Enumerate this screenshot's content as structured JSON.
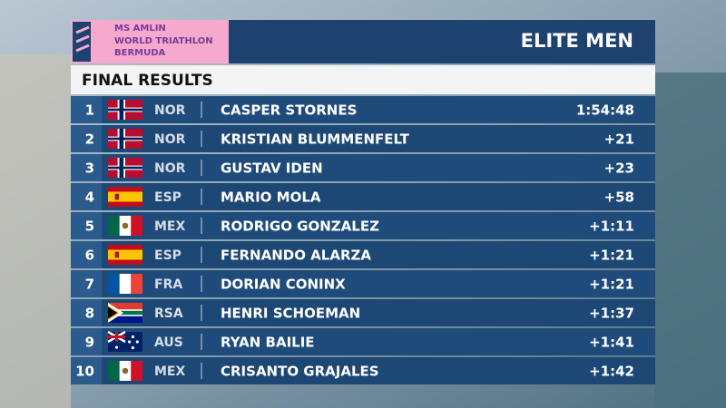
{
  "logo": {
    "line1": "MS AMLIN",
    "line2": "WORLD TRIATHLON",
    "line3": "BERMUDA"
  },
  "title": "ELITE MEN",
  "subtitle": "FINAL RESULTS",
  "results": [
    {
      "rank": 1,
      "country": "NOR",
      "name": "CASPER STORNES",
      "time": "1:54:48"
    },
    {
      "rank": 2,
      "country": "NOR",
      "name": "KRISTIAN BLUMMENFELT",
      "time": "+21"
    },
    {
      "rank": 3,
      "country": "NOR",
      "name": "GUSTAV IDEN",
      "time": "+23"
    },
    {
      "rank": 4,
      "country": "ESP",
      "name": "MARIO MOLA",
      "time": "+58"
    },
    {
      "rank": 5,
      "country": "MEX",
      "name": "RODRIGO GONZALEZ",
      "time": "+1:11"
    },
    {
      "rank": 6,
      "country": "ESP",
      "name": "FERNANDO ALARZA",
      "time": "+1:21"
    },
    {
      "rank": 7,
      "country": "FRA",
      "name": "DORIAN CONINX",
      "time": "+1:21"
    },
    {
      "rank": 8,
      "country": "RSA",
      "name": "HENRI SCHOEMAN",
      "time": "+1:37"
    },
    {
      "rank": 9,
      "country": "AUS",
      "name": "RYAN BAILIE",
      "time": "+1:41"
    },
    {
      "rank": 10,
      "country": "MEX",
      "name": "CRISANTO GRAJALES",
      "time": "+1:42"
    }
  ]
}
